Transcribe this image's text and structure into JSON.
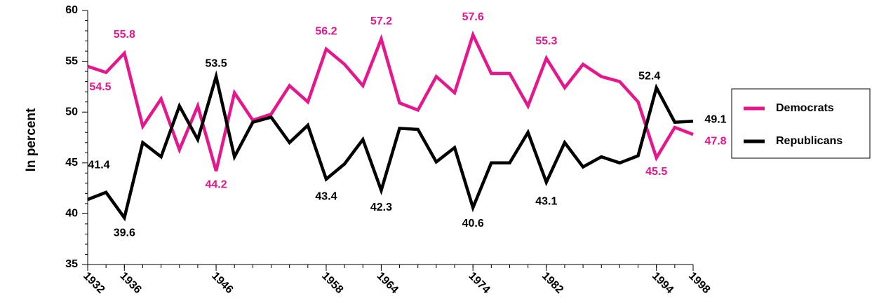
{
  "chart_data": {
    "type": "line",
    "y_label": "In percent",
    "x": [
      1932,
      1934,
      1936,
      1938,
      1940,
      1942,
      1944,
      1946,
      1948,
      1950,
      1952,
      1954,
      1956,
      1958,
      1960,
      1962,
      1964,
      1966,
      1968,
      1970,
      1972,
      1974,
      1976,
      1978,
      1980,
      1982,
      1984,
      1986,
      1988,
      1990,
      1992,
      1994,
      1996,
      1998
    ],
    "series": [
      {
        "name": "Democrats",
        "color": "#e6168c",
        "values": [
          54.5,
          53.9,
          55.8,
          48.6,
          51.3,
          46.3,
          50.6,
          44.2,
          51.9,
          49.2,
          49.8,
          52.6,
          51.0,
          56.2,
          54.7,
          52.6,
          57.2,
          50.9,
          50.2,
          53.5,
          51.9,
          57.6,
          53.8,
          53.8,
          50.6,
          55.3,
          52.4,
          54.7,
          53.5,
          53.0,
          51.0,
          45.5,
          48.5,
          47.8
        ],
        "value_labels": [
          "54.5",
          null,
          "55.8",
          null,
          null,
          null,
          null,
          "44.2",
          null,
          null,
          null,
          null,
          null,
          "56.2",
          null,
          null,
          "57.2",
          null,
          null,
          null,
          null,
          "57.6",
          null,
          null,
          null,
          "55.3",
          null,
          null,
          null,
          null,
          null,
          "45.5",
          null,
          "47.8"
        ]
      },
      {
        "name": "Republicans",
        "color": "#000000",
        "values": [
          41.4,
          42.1,
          39.6,
          47.0,
          45.6,
          50.6,
          47.3,
          53.5,
          45.6,
          49.0,
          49.5,
          47.0,
          48.7,
          43.4,
          44.9,
          47.3,
          42.3,
          48.4,
          48.3,
          45.1,
          46.5,
          40.6,
          45.0,
          45.0,
          48.0,
          43.1,
          47.0,
          44.6,
          45.6,
          45.0,
          45.7,
          52.4,
          49.0,
          49.1
        ],
        "value_labels": [
          "41.4",
          null,
          "39.6",
          null,
          null,
          null,
          null,
          "53.5",
          null,
          null,
          null,
          null,
          null,
          "43.4",
          null,
          null,
          "42.3",
          null,
          null,
          null,
          null,
          "40.6",
          null,
          null,
          null,
          "43.1",
          null,
          null,
          null,
          null,
          null,
          "52.4",
          null,
          "49.1"
        ]
      }
    ],
    "xlim": [
      1932,
      1998
    ],
    "xticks": [
      1932,
      1936,
      1946,
      1958,
      1964,
      1974,
      1982,
      1994,
      1998
    ],
    "ylim": [
      35,
      60
    ],
    "yticks": [
      35,
      40,
      45,
      50,
      55,
      60
    ],
    "legend": "right"
  }
}
